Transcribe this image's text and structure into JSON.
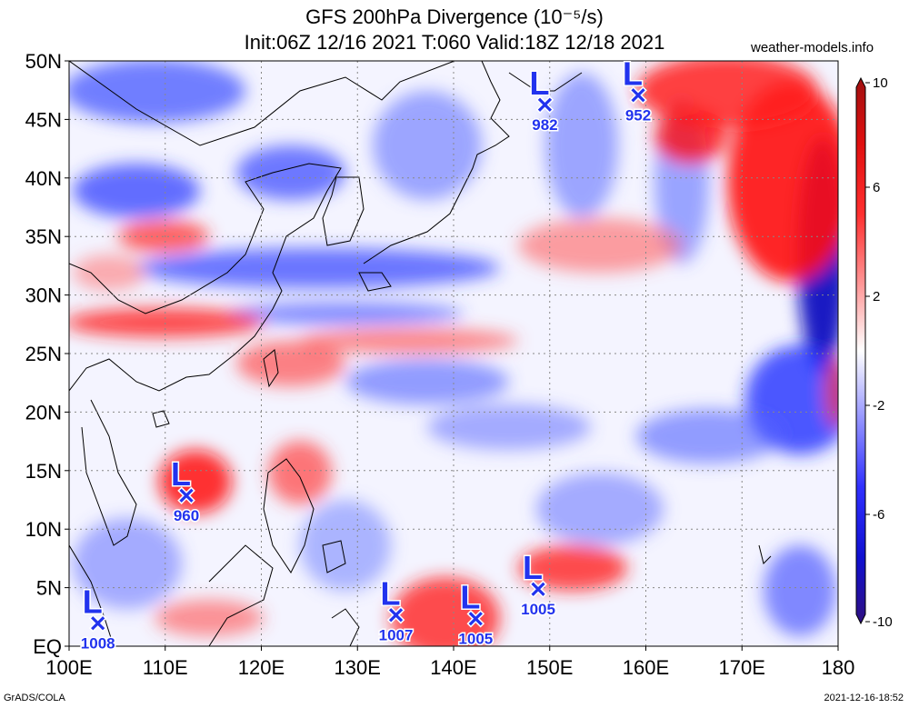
{
  "header": {
    "title": "GFS 200hPa Divergence (10⁻⁵/s)",
    "subtitle": "Init:06Z 12/16 2021 T:060 Valid:18Z 12/18 2021",
    "watermark": "weather-models.info"
  },
  "axes": {
    "lon_labels": [
      "100E",
      "110E",
      "120E",
      "130E",
      "140E",
      "150E",
      "160E",
      "170E",
      "180"
    ],
    "lat_labels": [
      "EQ",
      "5N",
      "10N",
      "15N",
      "20N",
      "25N",
      "30N",
      "35N",
      "40N",
      "45N",
      "50N"
    ],
    "lon_range": [
      100,
      180
    ],
    "lat_range": [
      0,
      50
    ]
  },
  "colorbar": {
    "labels": [
      "10",
      "6",
      "2",
      "-2",
      "-6",
      "-10"
    ],
    "range": [
      -10,
      10
    ]
  },
  "lows": [
    {
      "symbol": "L",
      "pressure": "982",
      "lon": 149.5,
      "lat": 46.2
    },
    {
      "symbol": "L",
      "pressure": "952",
      "lon": 159.2,
      "lat": 47.0
    },
    {
      "symbol": "L",
      "pressure": "960",
      "lon": 112.2,
      "lat": 12.8
    },
    {
      "symbol": "L",
      "pressure": "1008",
      "lon": 103.0,
      "lat": 1.9
    },
    {
      "symbol": "L",
      "pressure": "1007",
      "lon": 134.0,
      "lat": 2.6
    },
    {
      "symbol": "L",
      "pressure": "1005",
      "lon": 142.3,
      "lat": 2.3
    },
    {
      "symbol": "L",
      "pressure": "1005",
      "lon": 148.8,
      "lat": 4.8
    }
  ],
  "colors": {
    "positive": "#ff0000",
    "negative": "#0000ff",
    "low_marker": "#2233ee"
  },
  "footer": {
    "left": "GrADS/COLA",
    "right": "2021-12-16-18:52"
  }
}
